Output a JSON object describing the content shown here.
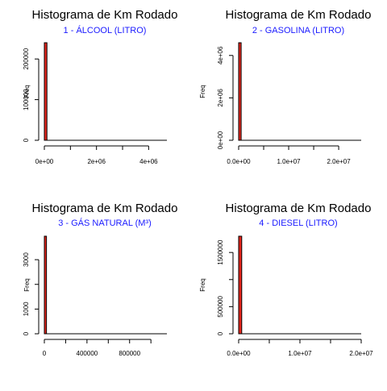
{
  "colors": {
    "bar_fill": "#e5251b",
    "bar_stroke": "#000000",
    "subtitle": "#1a1aff",
    "axis": "#000000"
  },
  "chart_data": [
    {
      "type": "bar",
      "title": "Histograma de Km Rodado",
      "subtitle": "1 - ÁLCOOL (LITRO)",
      "xlabel": "",
      "ylabel": "Freq",
      "xlim": [
        0,
        4700000
      ],
      "ylim": [
        0,
        240000
      ],
      "x_ticks": [
        0,
        1000000,
        2000000,
        3000000,
        4000000
      ],
      "x_tick_labels": [
        "0e+00",
        "",
        "2e+06",
        "",
        "4e+06"
      ],
      "y_ticks": [
        0,
        100000,
        200000
      ],
      "y_tick_labels": [
        "0",
        "100000",
        "200000"
      ],
      "bins": [
        {
          "start": 0,
          "end": 100000,
          "count": 240000
        }
      ]
    },
    {
      "type": "bar",
      "title": "Histograma de Km Rodado",
      "subtitle": "2 - GASOLINA (LITRO)",
      "xlabel": "",
      "ylabel": "Freq",
      "xlim": [
        0,
        24500000
      ],
      "ylim": [
        0,
        4600000
      ],
      "x_ticks": [
        0,
        5000000,
        10000000,
        15000000,
        20000000
      ],
      "x_tick_labels": [
        "0.0e+00",
        "",
        "1.0e+07",
        "",
        "2.0e+07"
      ],
      "y_ticks": [
        0,
        2000000,
        4000000
      ],
      "y_tick_labels": [
        "0e+00",
        "2e+06",
        "4e+06"
      ],
      "bins": [
        {
          "start": 0,
          "end": 500000,
          "count": 4600000
        }
      ]
    },
    {
      "type": "bar",
      "title": "Histograma de Km Rodado",
      "subtitle": "3 - GÁS NATURAL (M³)",
      "xlabel": "",
      "ylabel": "Freq",
      "xlim": [
        0,
        1150000
      ],
      "ylim": [
        0,
        3950
      ],
      "x_ticks": [
        0,
        200000,
        400000,
        600000,
        800000,
        1000000
      ],
      "x_tick_labels": [
        "0",
        "",
        "400000",
        "",
        "800000",
        ""
      ],
      "y_ticks": [
        0,
        1000,
        2000,
        3000
      ],
      "y_tick_labels": [
        "0",
        "1000",
        "",
        "3000"
      ],
      "bins": [
        {
          "start": 0,
          "end": 20000,
          "count": 3950
        }
      ]
    },
    {
      "type": "bar",
      "title": "Histograma de Km Rodado",
      "subtitle": "4 - DIESEL (LITRO)",
      "xlabel": "",
      "ylabel": "Freq",
      "xlim": [
        0,
        20000000
      ],
      "ylim": [
        0,
        1800000
      ],
      "x_ticks": [
        0,
        5000000,
        10000000,
        15000000,
        20000000
      ],
      "x_tick_labels": [
        "0.0e+00",
        "",
        "1.0e+07",
        "",
        "2.0e+07"
      ],
      "y_ticks": [
        0,
        500000,
        1000000,
        1500000
      ],
      "y_tick_labels": [
        "0",
        "500000",
        "",
        "1500000"
      ],
      "bins": [
        {
          "start": 0,
          "end": 500000,
          "count": 1800000
        }
      ]
    }
  ]
}
